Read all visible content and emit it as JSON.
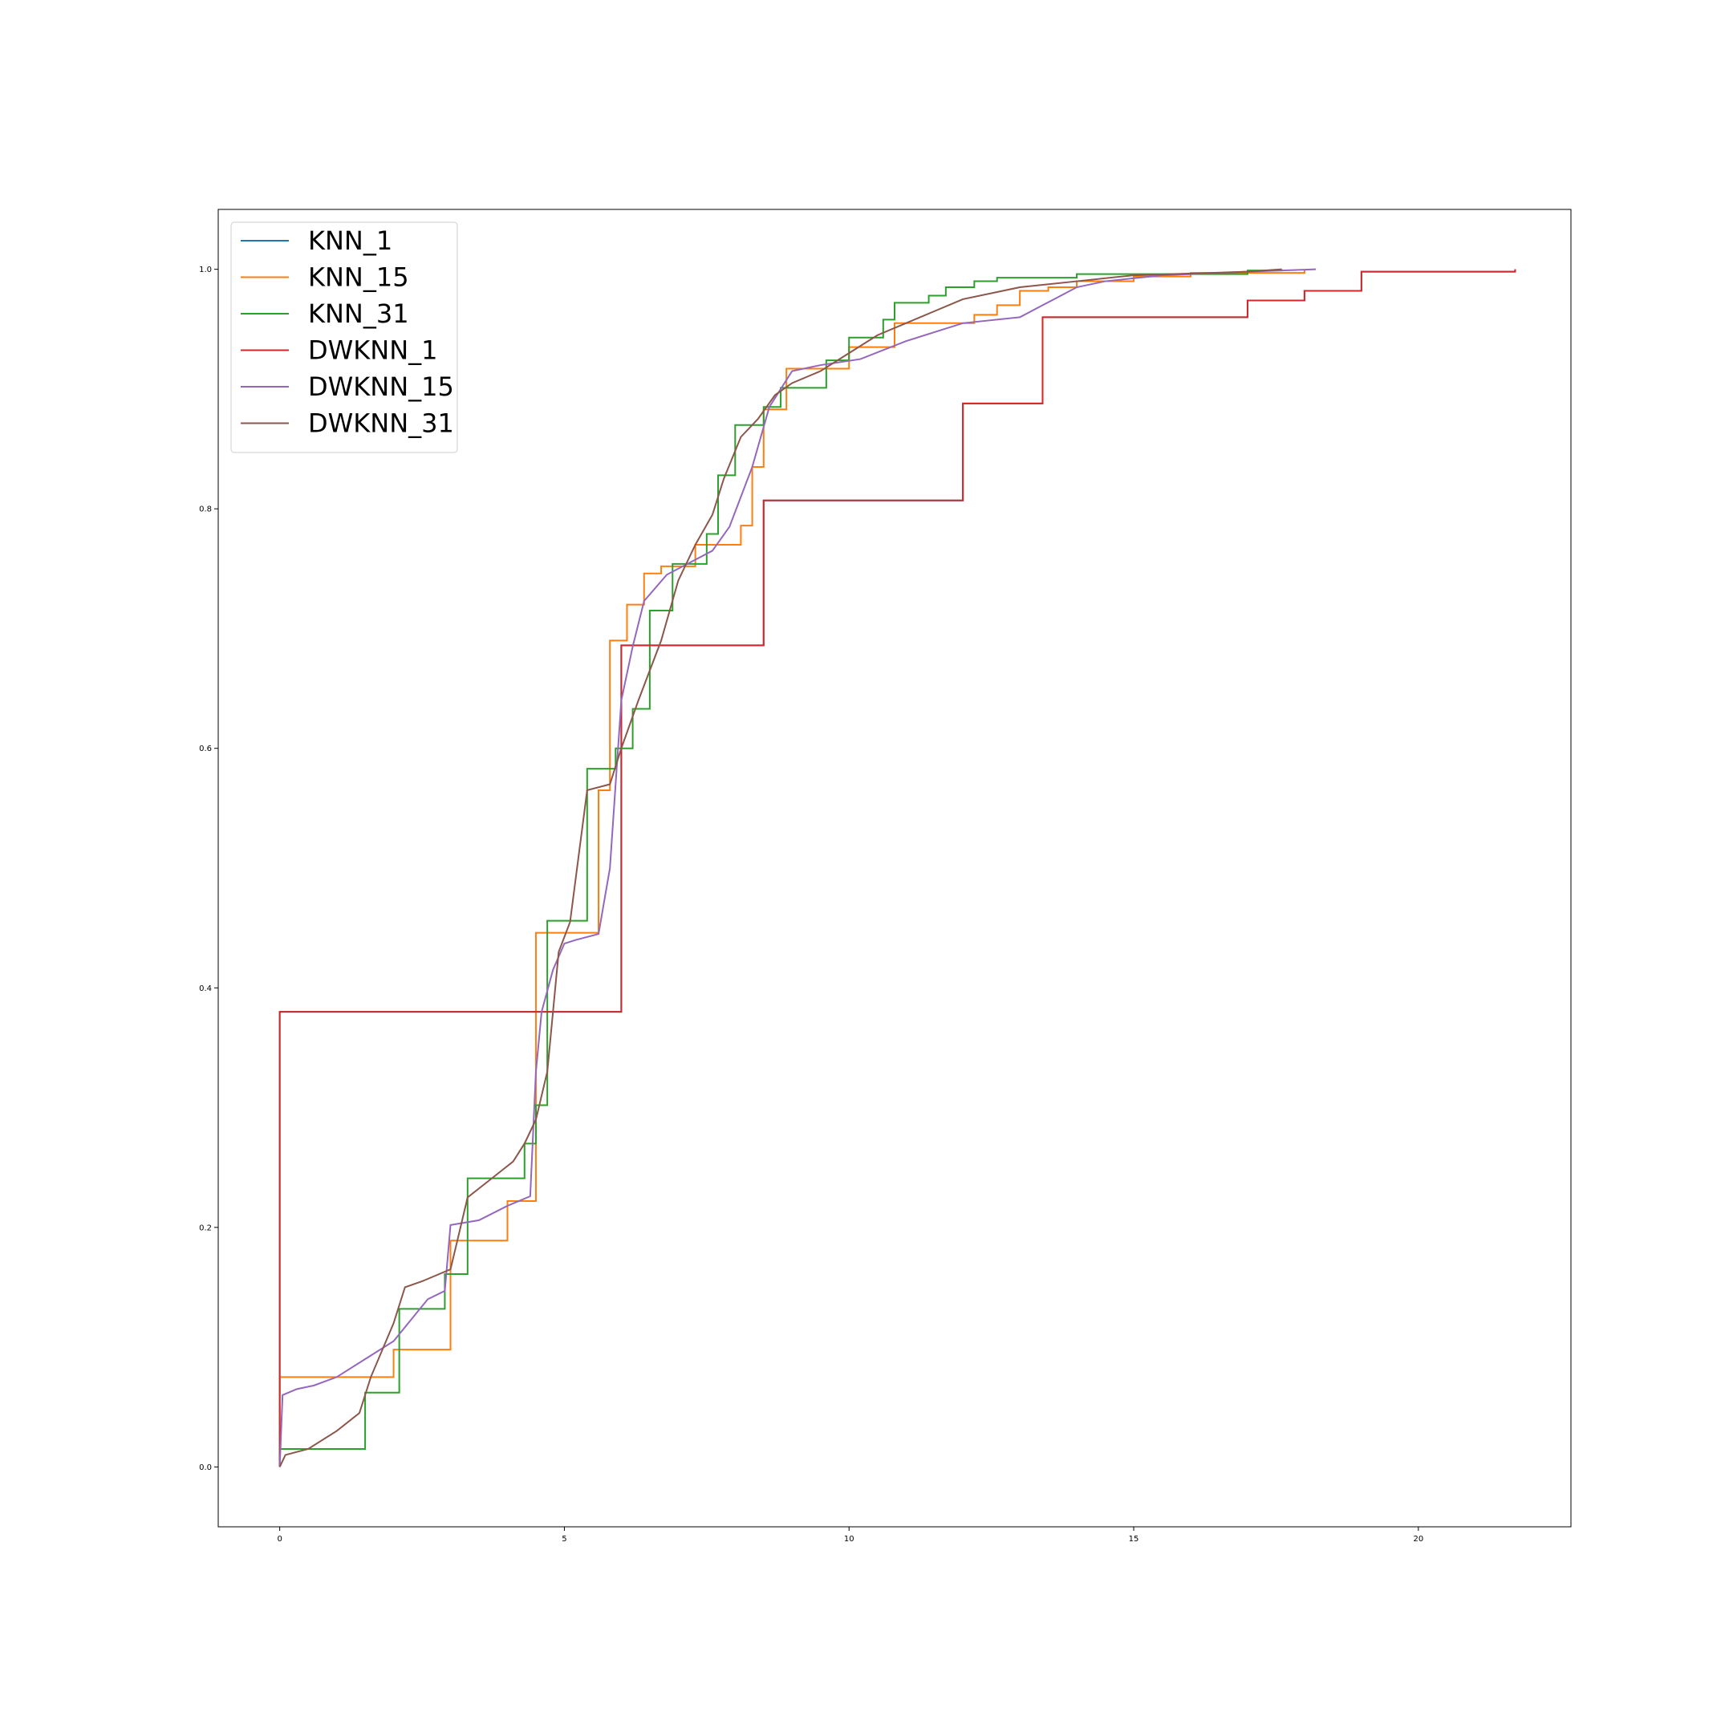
{
  "chart_data": {
    "type": "line",
    "title": "",
    "xlabel": "",
    "ylabel": "",
    "xlim": [
      -1.08,
      22.68
    ],
    "ylim": [
      -0.05,
      1.05
    ],
    "x_ticks": [
      0,
      5,
      10,
      15,
      20
    ],
    "x_tick_labels": [
      "0",
      "5",
      "10",
      "15",
      "20"
    ],
    "y_ticks": [
      0.0,
      0.2,
      0.4,
      0.6,
      0.8,
      1.0
    ],
    "y_tick_labels": [
      "0.0",
      "0.2",
      "0.4",
      "0.6",
      "0.8",
      "1.0"
    ],
    "grid": false,
    "legend_position": "upper-left",
    "series": [
      {
        "name": "KNN_1",
        "color": "#1f77b4",
        "step": true,
        "x": [
          0,
          0,
          6.0,
          8.5,
          12.0,
          13.4,
          17.0,
          18.0,
          19.0,
          21.7,
          21.7
        ],
        "y": [
          0,
          0.38,
          0.686,
          0.807,
          0.888,
          0.96,
          0.974,
          0.982,
          0.998,
          0.998,
          1.0
        ]
      },
      {
        "name": "KNN_15",
        "color": "#ff7f0e",
        "step": true,
        "x": [
          0,
          0,
          2.0,
          2.8,
          3.0,
          4.0,
          4.2,
          4.5,
          4.8,
          5.4,
          5.6,
          5.7,
          5.8,
          6.1,
          6.4,
          6.7,
          7.3,
          7.6,
          8.1,
          8.3,
          8.5,
          8.9,
          10.0,
          10.8,
          12.2,
          12.6,
          13.0,
          13.5,
          14.0,
          15.0,
          16.0,
          18.0
        ],
        "y": [
          0,
          0.075,
          0.098,
          0.098,
          0.189,
          0.222,
          0.222,
          0.446,
          0.446,
          0.446,
          0.565,
          0.565,
          0.69,
          0.72,
          0.746,
          0.752,
          0.77,
          0.77,
          0.786,
          0.835,
          0.883,
          0.917,
          0.935,
          0.955,
          0.962,
          0.97,
          0.982,
          0.985,
          0.99,
          0.994,
          0.997,
          1.0
        ]
      },
      {
        "name": "KNN_31",
        "color": "#2ca02c",
        "step": true,
        "x": [
          0,
          0,
          1.5,
          2.1,
          2.9,
          3.3,
          4.3,
          4.5,
          4.7,
          5.4,
          5.9,
          6.2,
          6.5,
          6.9,
          7.5,
          7.7,
          8.0,
          8.5,
          8.8,
          9.6,
          10.0,
          10.6,
          10.8,
          11.4,
          11.7,
          12.2,
          12.6,
          14.0,
          17.0,
          17.6
        ],
        "y": [
          0,
          0.015,
          0.062,
          0.132,
          0.161,
          0.241,
          0.27,
          0.302,
          0.456,
          0.583,
          0.6,
          0.633,
          0.715,
          0.754,
          0.779,
          0.828,
          0.87,
          0.885,
          0.901,
          0.924,
          0.943,
          0.958,
          0.972,
          0.978,
          0.985,
          0.99,
          0.993,
          0.996,
          0.999,
          1.0
        ]
      },
      {
        "name": "DWKNN_1",
        "color": "#d62728",
        "step": true,
        "x": [
          0,
          0,
          6.0,
          8.5,
          12.0,
          13.4,
          17.0,
          18.0,
          19.0,
          21.7,
          21.7
        ],
        "y": [
          0,
          0.38,
          0.686,
          0.807,
          0.888,
          0.96,
          0.974,
          0.982,
          0.998,
          0.998,
          1.0
        ]
      },
      {
        "name": "DWKNN_15",
        "color": "#9467bd",
        "step": false,
        "x": [
          0,
          0.05,
          0.3,
          0.6,
          1.0,
          1.5,
          2.0,
          2.6,
          2.9,
          3.0,
          3.5,
          4.0,
          4.4,
          4.5,
          4.6,
          4.8,
          5.0,
          5.2,
          5.6,
          5.8,
          6.0,
          6.2,
          6.4,
          6.8,
          7.2,
          7.6,
          7.9,
          8.3,
          8.6,
          9.0,
          9.5,
          10.2,
          11.0,
          12.0,
          13.0,
          13.6,
          14.0,
          14.5,
          15.5,
          17.0,
          18.2
        ],
        "y": [
          0,
          0.06,
          0.065,
          0.068,
          0.075,
          0.09,
          0.105,
          0.14,
          0.147,
          0.202,
          0.206,
          0.218,
          0.226,
          0.33,
          0.38,
          0.415,
          0.437,
          0.44,
          0.445,
          0.5,
          0.64,
          0.685,
          0.723,
          0.745,
          0.755,
          0.765,
          0.785,
          0.835,
          0.885,
          0.915,
          0.92,
          0.925,
          0.94,
          0.955,
          0.96,
          0.975,
          0.985,
          0.99,
          0.995,
          0.998,
          1.0
        ]
      },
      {
        "name": "DWKNN_31",
        "color": "#8c564b",
        "step": false,
        "x": [
          0,
          0.1,
          0.5,
          1.0,
          1.4,
          1.6,
          2.0,
          2.2,
          2.5,
          3.0,
          3.3,
          3.7,
          4.1,
          4.3,
          4.5,
          4.7,
          4.9,
          5.1,
          5.4,
          5.8,
          6.0,
          6.3,
          6.7,
          7.0,
          7.3,
          7.6,
          7.8,
          8.1,
          8.4,
          8.7,
          9.0,
          9.5,
          10.0,
          10.5,
          11.0,
          11.5,
          12.0,
          13.0,
          14.0,
          15.0,
          17.0,
          17.6
        ],
        "y": [
          0,
          0.01,
          0.015,
          0.03,
          0.045,
          0.075,
          0.12,
          0.15,
          0.155,
          0.165,
          0.225,
          0.24,
          0.255,
          0.27,
          0.29,
          0.33,
          0.43,
          0.455,
          0.565,
          0.57,
          0.6,
          0.64,
          0.69,
          0.74,
          0.77,
          0.795,
          0.825,
          0.86,
          0.875,
          0.895,
          0.905,
          0.915,
          0.93,
          0.945,
          0.955,
          0.965,
          0.975,
          0.985,
          0.99,
          0.995,
          0.998,
          1.0
        ]
      }
    ]
  }
}
